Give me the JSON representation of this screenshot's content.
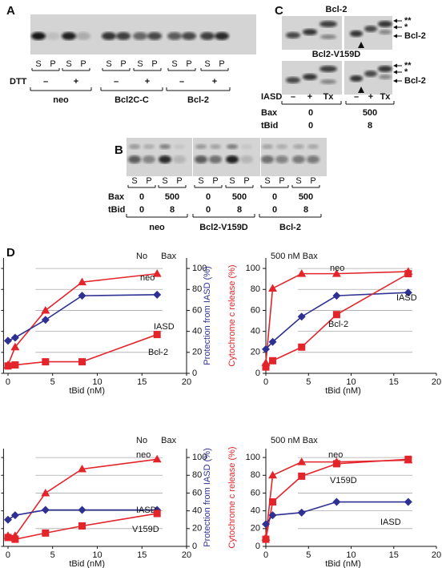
{
  "figure": {
    "A": {
      "label": "A",
      "lanes": [
        "S",
        "P",
        "S",
        "P",
        "S",
        "P",
        "S",
        "P",
        "S",
        "P",
        "S",
        "P"
      ],
      "row_label": "DTT",
      "row_values": [
        "–",
        "+",
        "–",
        "+",
        "–",
        "+"
      ],
      "groups": [
        "neo",
        "Bcl2C-C",
        "Bcl-2"
      ]
    },
    "B": {
      "label": "B",
      "lanes": [
        "S",
        "P",
        "S",
        "P",
        "S",
        "P",
        "S",
        "P",
        "S",
        "P",
        "S",
        "P"
      ],
      "rows": [
        {
          "name": "Bax",
          "values": [
            0,
            500,
            0,
            500,
            0,
            500
          ]
        },
        {
          "name": "tBid",
          "values": [
            0,
            8,
            0,
            8,
            0,
            8
          ]
        }
      ],
      "groups": [
        "neo",
        "Bcl2-V159D",
        "Bcl-2"
      ]
    },
    "C": {
      "label": "C",
      "blots": [
        {
          "title": "Bcl-2",
          "bands": [
            "**",
            "*",
            "Bcl-2"
          ]
        },
        {
          "title": "Bcl2-V159D",
          "bands": [
            "**",
            "*",
            "Bcl-2"
          ]
        }
      ],
      "rows": [
        {
          "name": "IASD",
          "values": [
            "–",
            "+",
            "Tx",
            "–",
            "+",
            "Tx"
          ]
        },
        {
          "name": "Bax",
          "values": [
            0,
            500
          ]
        },
        {
          "name": "tBid",
          "values": [
            0,
            8
          ]
        }
      ]
    },
    "D": {
      "label": "D"
    }
  },
  "chart_data": [
    {
      "type": "line",
      "annotation": "No Bax",
      "x": [
        0,
        0.8,
        4.2,
        8.3,
        16.7
      ],
      "xlabel": "tBid (nM)",
      "ylabel": "Protection from IASD (%)",
      "ylabel_color": "#2e3192",
      "yaxis_side": "right",
      "xlim": [
        -0.5,
        20
      ],
      "xticks": [
        0,
        5,
        10,
        15,
        20
      ],
      "ylim": [
        0,
        110
      ],
      "yticks": [
        0,
        20,
        40,
        60,
        80,
        100
      ],
      "grid": true,
      "series": [
        {
          "name": "neo",
          "color": "#e3242b",
          "marker": "triangle",
          "values": [
            8,
            25,
            60,
            87,
            95
          ]
        },
        {
          "name": "IASD",
          "color": "#2e3192",
          "marker": "diamond",
          "values": [
            31,
            34,
            51,
            74,
            75
          ]
        },
        {
          "name": "Bcl-2",
          "color": "#e3242b",
          "marker": "square",
          "values": [
            7,
            8,
            11,
            11,
            37
          ]
        }
      ]
    },
    {
      "type": "line",
      "annotation": "500 nM Bax",
      "x": [
        0,
        0.8,
        4.2,
        8.3,
        16.7
      ],
      "xlabel": "tBid (nM)",
      "ylabel": "Cytochrome c release (%)",
      "ylabel_color": "#e3242b",
      "yaxis_side": "left",
      "xlim": [
        0,
        20
      ],
      "xticks": [
        0,
        5,
        10,
        15,
        20
      ],
      "ylim": [
        0,
        110
      ],
      "yticks": [
        0,
        20,
        40,
        60,
        80,
        100
      ],
      "grid": true,
      "series": [
        {
          "name": "neo",
          "color": "#e3242b",
          "marker": "triangle",
          "values": [
            10,
            81,
            95,
            95,
            97
          ]
        },
        {
          "name": "IASD",
          "color": "#2e3192",
          "marker": "diamond",
          "values": [
            23,
            30,
            54,
            74,
            77
          ]
        },
        {
          "name": "Bcl-2",
          "color": "#e3242b",
          "marker": "square",
          "values": [
            6,
            12,
            25,
            56,
            95
          ]
        }
      ]
    },
    {
      "type": "line",
      "annotation": "No Bax",
      "x": [
        0,
        0.8,
        4.2,
        8.3,
        16.7
      ],
      "xlabel": "tBid (nM)",
      "ylabel": "Protection from IASD (%)",
      "ylabel_color": "#2e3192",
      "yaxis_side": "right",
      "xlim": [
        -0.5,
        20
      ],
      "xticks": [
        0,
        5,
        10,
        15,
        20
      ],
      "ylim": [
        0,
        110
      ],
      "yticks": [
        0,
        20,
        40,
        60,
        80,
        100
      ],
      "grid": true,
      "series": [
        {
          "name": "neo",
          "color": "#e3242b",
          "marker": "triangle",
          "values": [
            12,
            12,
            60,
            87,
            98
          ]
        },
        {
          "name": "IASD",
          "color": "#2e3192",
          "marker": "diamond",
          "values": [
            30,
            35,
            41,
            41,
            41
          ]
        },
        {
          "name": "V159D",
          "color": "#e3242b",
          "marker": "square",
          "values": [
            10,
            8,
            15,
            23,
            37
          ]
        }
      ]
    },
    {
      "type": "line",
      "annotation": "500 nM Bax",
      "x": [
        0,
        0.8,
        4.2,
        8.3,
        16.7
      ],
      "xlabel": "tBid (nM)",
      "ylabel": "Cytochrome c release (%)",
      "ylabel_color": "#e3242b",
      "yaxis_side": "left",
      "xlim": [
        0,
        20
      ],
      "xticks": [
        0,
        5,
        10,
        15,
        20
      ],
      "ylim": [
        0,
        110
      ],
      "yticks": [
        0,
        20,
        40,
        60,
        80,
        100
      ],
      "grid": true,
      "series": [
        {
          "name": "neo",
          "color": "#e3242b",
          "marker": "triangle",
          "values": [
            10,
            80,
            95,
            95,
            97
          ]
        },
        {
          "name": "V159D",
          "color": "#e3242b",
          "marker": "square",
          "values": [
            8,
            50,
            79,
            93,
            98
          ]
        },
        {
          "name": "IASD",
          "color": "#2e3192",
          "marker": "diamond",
          "values": [
            25,
            35,
            38,
            50,
            50
          ]
        }
      ]
    }
  ]
}
